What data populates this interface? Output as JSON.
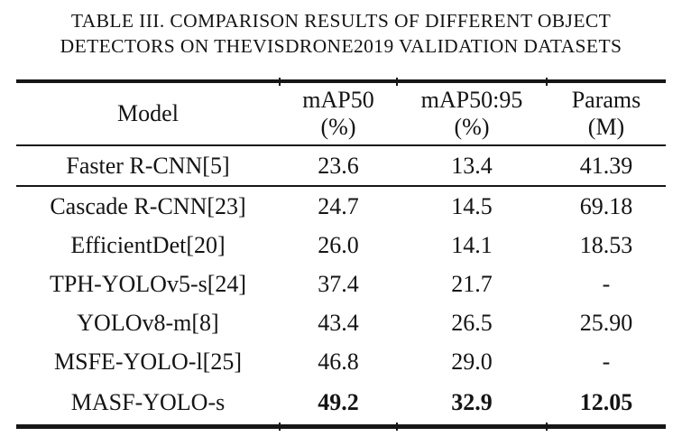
{
  "caption": {
    "line1": "TABLE III. COMPARISON RESULTS OF DIFFERENT OBJECT",
    "line2": "DETECTORS ON THEVISDRONE2019 VALIDATION DATASETS"
  },
  "table": {
    "columns": [
      {
        "line1": "Model",
        "line2": ""
      },
      {
        "line1": "mAP50",
        "line2": "(%)"
      },
      {
        "line1": "mAP50:95",
        "line2": "(%)"
      },
      {
        "line1": "Params",
        "line2": "(M)"
      }
    ],
    "rows": [
      {
        "model": "Faster R-CNN[5]",
        "map50": "23.6",
        "map50_95": "13.4",
        "params": "41.39"
      },
      {
        "model": "Cascade R-CNN[23]",
        "map50": "24.7",
        "map50_95": "14.5",
        "params": "69.18"
      },
      {
        "model": "EfficientDet[20]",
        "map50": "26.0",
        "map50_95": "14.1",
        "params": "18.53"
      },
      {
        "model": "TPH-YOLOv5-s[24]",
        "map50": "37.4",
        "map50_95": "21.7",
        "params": "-"
      },
      {
        "model": "YOLOv8-m[8]",
        "map50": "43.4",
        "map50_95": "26.5",
        "params": "25.90"
      },
      {
        "model": "MSFE-YOLO-l[25]",
        "map50": "46.8",
        "map50_95": "29.0",
        "params": "-"
      },
      {
        "model": "MASF-YOLO-s",
        "map50": "49.2",
        "map50_95": "32.9",
        "params": "12.05"
      }
    ],
    "colors": {
      "background": "#ffffff",
      "text": "#141414",
      "rule": "#161616"
    }
  }
}
